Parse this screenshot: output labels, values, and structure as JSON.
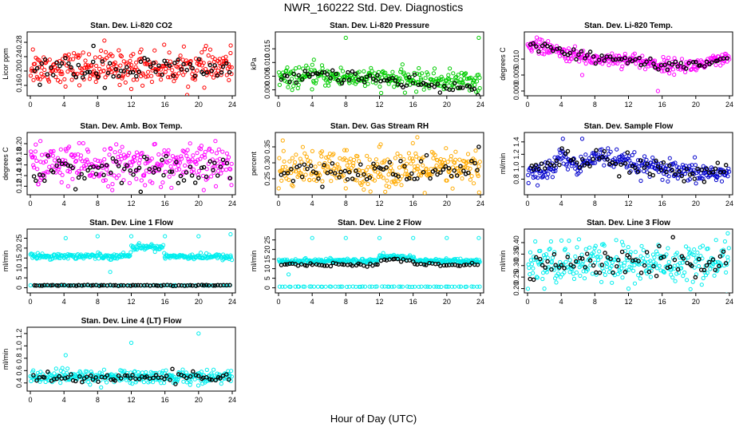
{
  "figure": {
    "title": "NWR_160222  Std. Dev. Diagnostics",
    "xlabel": "Hour of Day (UTC)"
  },
  "chart_data": [
    {
      "type": "scatter",
      "title": "Stan. Dev. Li-820 CO2",
      "ylabel": "Licor ppm",
      "color": "#ff0000",
      "xlim": [
        0,
        24
      ],
      "ylim": [
        0.14,
        0.3
      ],
      "yticks": [
        0.16,
        0.2,
        0.24,
        0.28
      ],
      "ytick_labels": [
        "0.16",
        "0.20",
        "0.24",
        "0.28"
      ],
      "xticks": [
        0,
        4,
        8,
        12,
        16,
        20,
        24
      ],
      "levels": [
        [
          0,
          0.21
        ],
        [
          24,
          0.21
        ]
      ],
      "spread": 0.022,
      "outliers": [
        [
          0.3,
          0.26
        ],
        [
          7.8,
          0.17
        ],
        [
          8.8,
          0.285
        ],
        [
          12.0,
          0.15
        ],
        [
          23.8,
          0.25
        ],
        [
          13.2,
          0.26
        ]
      ],
      "black_level": [
        [
          0,
          0.205
        ],
        [
          24,
          0.205
        ]
      ],
      "black_spread": 0.018,
      "black_outliers": [
        [
          7.5,
          0.27
        ]
      ]
    },
    {
      "type": "scatter",
      "title": "Stan. Dev. Li-820 Pressure",
      "ylabel": "kPa",
      "color": "#00cc00",
      "xlim": [
        0,
        24
      ],
      "ylim": [
        -0.001,
        0.02
      ],
      "yticks": [
        0.0,
        0.005,
        0.01,
        0.015
      ],
      "ytick_labels": [
        "0.000",
        "0.005",
        "0.010",
        "0.015"
      ],
      "xticks": [
        0,
        4,
        8,
        12,
        16,
        20,
        24
      ],
      "levels": [
        [
          0,
          0.004
        ],
        [
          5,
          0.005
        ],
        [
          12,
          0.004
        ],
        [
          24,
          0.003
        ]
      ],
      "spread": 0.0018,
      "outliers": [
        [
          8.0,
          0.019
        ],
        [
          23.8,
          0.019
        ],
        [
          4.2,
          0.011
        ]
      ],
      "black_level": [
        [
          0,
          0.003
        ],
        [
          5,
          0.006
        ],
        [
          12,
          0.004
        ],
        [
          15,
          0.002
        ],
        [
          24,
          0.0
        ]
      ],
      "black_spread": 0.0012,
      "black_outliers": []
    },
    {
      "type": "scatter",
      "title": "Stan. Dev. Li-820 Temp.",
      "ylabel": "degrees C",
      "color": "#ff00ff",
      "xlim": [
        0,
        24
      ],
      "ylim": [
        -0.0005,
        0.0175
      ],
      "yticks": [
        0.0,
        0.005,
        0.01
      ],
      "ytick_labels": [
        "0.000",
        "0.005",
        "0.010"
      ],
      "xticks": [
        0,
        4,
        8,
        12,
        16,
        20,
        24
      ],
      "levels": [
        [
          0,
          0.015
        ],
        [
          4,
          0.012
        ],
        [
          8,
          0.01
        ],
        [
          12,
          0.01
        ],
        [
          16,
          0.008
        ],
        [
          20,
          0.008
        ],
        [
          24,
          0.01
        ]
      ],
      "spread": 0.0011,
      "outliers": [
        [
          15.5,
          0.0
        ],
        [
          6.5,
          0.005
        ]
      ],
      "black_level": [
        [
          0,
          0.015
        ],
        [
          4,
          0.012
        ],
        [
          8,
          0.01
        ],
        [
          12,
          0.01
        ],
        [
          16,
          0.008
        ],
        [
          20,
          0.008
        ],
        [
          24,
          0.011
        ]
      ],
      "black_spread": 0.0009,
      "black_outliers": []
    },
    {
      "type": "scatter",
      "title": "Stan. Dev. Amb. Box Temp.",
      "ylabel": "degrees C",
      "color": "#ff00ff",
      "xlim": [
        0,
        24
      ],
      "ylim": [
        0.11,
        0.215
      ],
      "yticks": [
        0.12,
        0.14,
        0.16,
        0.18,
        0.2
      ],
      "ytick_labels": [
        "0.12",
        "0.14",
        "0.16",
        "0.18",
        "0.20"
      ],
      "xticks": [
        0,
        4,
        8,
        12,
        16,
        20,
        24
      ],
      "levels": [
        [
          0,
          0.16
        ],
        [
          24,
          0.16
        ]
      ],
      "spread": 0.018,
      "outliers": [
        [
          1.2,
          0.205
        ],
        [
          22.0,
          0.205
        ],
        [
          4.5,
          0.12
        ]
      ],
      "black_level": [
        [
          0,
          0.15
        ],
        [
          24,
          0.155
        ]
      ],
      "black_spread": 0.013,
      "black_outliers": []
    },
    {
      "type": "scatter",
      "title": "Stan. Dev. Gas Stream RH",
      "ylabel": "percent",
      "color": "#ffaa00",
      "xlim": [
        0,
        24
      ],
      "ylim": [
        0.21,
        0.385
      ],
      "yticks": [
        0.25,
        0.3,
        0.35
      ],
      "ytick_labels": [
        "0.25",
        "0.30",
        "0.35"
      ],
      "xticks": [
        0,
        4,
        8,
        12,
        16,
        20,
        24
      ],
      "levels": [
        [
          0,
          0.28
        ],
        [
          24,
          0.28
        ]
      ],
      "spread": 0.03,
      "outliers": [
        [
          0.5,
          0.37
        ],
        [
          16.5,
          0.38
        ],
        [
          8,
          0.22
        ]
      ],
      "black_level": [
        [
          0,
          0.27
        ],
        [
          24,
          0.275
        ]
      ],
      "black_spread": 0.02,
      "black_outliers": [
        [
          23.8,
          0.35
        ]
      ]
    },
    {
      "type": "scatter",
      "title": "Stan. Dev. Sample Flow",
      "ylabel": "ml/min",
      "color": "#0000cc",
      "xlim": [
        0,
        24
      ],
      "ylim": [
        0.6,
        1.5
      ],
      "yticks": [
        0.8,
        1.0,
        1.2,
        1.4
      ],
      "ytick_labels": [
        "0.8",
        "1.0",
        "1.2",
        "1.4"
      ],
      "xticks": [
        0,
        4,
        8,
        12,
        16,
        20,
        24
      ],
      "levels": [
        [
          0,
          0.9
        ],
        [
          3,
          0.95
        ],
        [
          4,
          1.2
        ],
        [
          6,
          0.95
        ],
        [
          8,
          1.2
        ],
        [
          10,
          1.1
        ],
        [
          14,
          1.0
        ],
        [
          18,
          0.9
        ],
        [
          24,
          0.9
        ]
      ],
      "spread": 0.08,
      "outliers": [
        [
          1.2,
          0.7
        ],
        [
          4.2,
          1.45
        ],
        [
          6.5,
          1.45
        ]
      ],
      "black_level": [
        [
          0,
          0.95
        ],
        [
          3,
          1.0
        ],
        [
          4,
          1.2
        ],
        [
          6,
          1.0
        ],
        [
          8,
          1.2
        ],
        [
          10,
          1.1
        ],
        [
          14,
          1.0
        ],
        [
          18,
          0.9
        ],
        [
          24,
          0.95
        ]
      ],
      "black_spread": 0.07,
      "black_outliers": []
    },
    {
      "type": "scatter",
      "title": "Stan. Dev. Line 1 Flow",
      "ylabel": "ml/min",
      "color": "#00eeee",
      "xlim": [
        0,
        24
      ],
      "ylim": [
        -1,
        28
      ],
      "yticks": [
        0,
        5,
        10,
        15,
        20,
        25
      ],
      "ytick_labels": [
        "0",
        "5",
        "10",
        "15",
        "20",
        "25"
      ],
      "xticks": [
        0,
        4,
        8,
        12,
        16,
        20,
        24
      ],
      "levels": [
        [
          0,
          16
        ],
        [
          11.8,
          16
        ],
        [
          12,
          20.5
        ],
        [
          15.8,
          20.5
        ],
        [
          16,
          16
        ],
        [
          24,
          15.5
        ]
      ],
      "spread": 0.7,
      "outliers": [
        [
          4.2,
          25
        ],
        [
          8.0,
          26
        ],
        [
          12.0,
          26
        ],
        [
          16.0,
          26
        ],
        [
          20.0,
          26
        ],
        [
          23.8,
          27
        ],
        [
          9.5,
          8
        ]
      ],
      "black_level": [
        [
          0,
          1.2
        ],
        [
          24,
          1.2
        ]
      ],
      "black_spread": 0.1,
      "black_outliers": [],
      "low_band": 1.2
    },
    {
      "type": "scatter",
      "title": "Stan. Dev. Line 2 Flow",
      "ylabel": "ml/min",
      "color": "#00eeee",
      "xlim": [
        0,
        24
      ],
      "ylim": [
        -1,
        29
      ],
      "yticks": [
        0,
        5,
        10,
        15,
        20,
        25
      ],
      "ytick_labels": [
        "0",
        "5",
        "10",
        "15",
        "20",
        "25"
      ],
      "xticks": [
        0,
        4,
        8,
        12,
        16,
        20,
        24
      ],
      "levels": [
        [
          0,
          14
        ],
        [
          11.8,
          14
        ],
        [
          12,
          16
        ],
        [
          16,
          16
        ],
        [
          16.2,
          14
        ],
        [
          24,
          14
        ]
      ],
      "spread": 0.6,
      "outliers": [
        [
          4.0,
          26
        ],
        [
          8.0,
          26
        ],
        [
          12.0,
          26
        ],
        [
          16.0,
          26
        ],
        [
          20.0,
          26
        ],
        [
          23.8,
          26
        ],
        [
          1.2,
          7
        ]
      ],
      "black_level": [
        [
          0,
          12
        ],
        [
          11.8,
          12
        ],
        [
          12,
          15
        ],
        [
          16,
          14
        ],
        [
          16.2,
          12
        ],
        [
          24,
          12
        ]
      ],
      "black_spread": 0.4,
      "black_outliers": [],
      "low_band": 0.6
    },
    {
      "type": "scatter",
      "title": "Stan. Dev. Line 3 Flow",
      "ylabel": "ml/min",
      "color": "#00eeee",
      "xlim": [
        0,
        24
      ],
      "ylim": [
        0.195,
        0.445
      ],
      "yticks": [
        0.2,
        0.25,
        0.3,
        0.35,
        0.4
      ],
      "ytick_labels": [
        "0.20",
        "0.25",
        "0.30",
        "0.35",
        "0.40"
      ],
      "xticks": [
        0,
        4,
        8,
        12,
        16,
        20,
        24
      ],
      "levels": [
        [
          0,
          0.31
        ],
        [
          24,
          0.31
        ]
      ],
      "spread": 0.045,
      "outliers": [
        [
          23.8,
          0.44
        ],
        [
          2.0,
          0.2
        ],
        [
          12.0,
          0.2
        ]
      ],
      "black_level": [
        [
          0,
          0.31
        ],
        [
          24,
          0.31
        ]
      ],
      "black_spread": 0.03,
      "black_outliers": []
    },
    {
      "type": "scatter",
      "title": "Stan. Dev. Line 4 (LT) Flow",
      "ylabel": "ml/min",
      "color": "#00eeee",
      "xlim": [
        0,
        24
      ],
      "ylim": [
        0.32,
        1.25
      ],
      "yticks": [
        0.4,
        0.6,
        0.8,
        1.0,
        1.2
      ],
      "ytick_labels": [
        "0.4",
        "0.6",
        "0.8",
        "1.0",
        "1.2"
      ],
      "xticks": [
        0,
        4,
        8,
        12,
        16,
        20,
        24
      ],
      "levels": [
        [
          0,
          0.5
        ],
        [
          24,
          0.5
        ]
      ],
      "spread": 0.055,
      "outliers": [
        [
          4.2,
          0.85
        ],
        [
          12.0,
          1.05
        ],
        [
          20.0,
          1.2
        ]
      ],
      "black_level": [
        [
          0,
          0.48
        ],
        [
          24,
          0.5
        ]
      ],
      "black_spread": 0.04,
      "black_outliers": []
    }
  ]
}
